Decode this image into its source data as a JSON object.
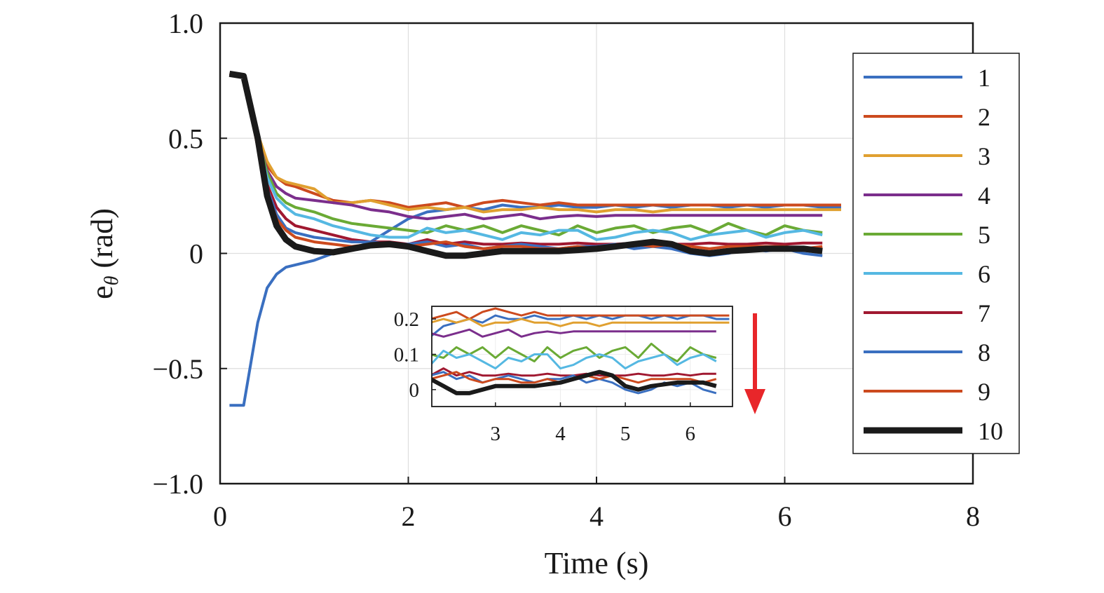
{
  "chart_data": {
    "type": "line",
    "title": "",
    "xlabel": "Time (s)",
    "ylabel": {
      "base": "e",
      "sub": "θ",
      "unit": "(rad)"
    },
    "xlim": [
      0,
      8
    ],
    "ylim": [
      -1.0,
      1.0
    ],
    "xticks": [
      0,
      2,
      4,
      6,
      8
    ],
    "xtick_labels": [
      "0",
      "2",
      "4",
      "6",
      "8"
    ],
    "yticks": [
      1.0,
      0.5,
      0,
      -0.5,
      -1.0
    ],
    "ytick_labels": [
      "1.0",
      "0.5",
      "0",
      "−0.5",
      "−1.0"
    ],
    "grid": true,
    "legend_placement": "right",
    "x": [
      0.1,
      0.25,
      0.4,
      0.5,
      0.6,
      0.7,
      0.8,
      1.0,
      1.2,
      1.4,
      1.6,
      1.8,
      2.0,
      2.2,
      2.4,
      2.6,
      2.8,
      3.0,
      3.2,
      3.4,
      3.6,
      3.8,
      4.0,
      4.2,
      4.4,
      4.6,
      4.8,
      5.0,
      5.2,
      5.4,
      5.6,
      5.8,
      6.0,
      6.2,
      6.4,
      6.6
    ],
    "series": [
      {
        "name": "1",
        "color": "#3a6fc0",
        "values": [
          -0.66,
          -0.66,
          -0.3,
          -0.15,
          -0.09,
          -0.06,
          -0.05,
          -0.03,
          0.0,
          0.02,
          0.05,
          0.1,
          0.15,
          0.18,
          0.19,
          0.2,
          0.19,
          0.21,
          0.2,
          0.2,
          0.21,
          0.2,
          0.2,
          0.21,
          0.2,
          0.21,
          0.2,
          0.21,
          0.21,
          0.2,
          0.21,
          0.2,
          0.21,
          0.21,
          0.2,
          0.2
        ]
      },
      {
        "name": "2",
        "color": "#cc4a1e",
        "values": [
          0.78,
          0.77,
          0.52,
          0.38,
          0.33,
          0.3,
          0.29,
          0.26,
          0.23,
          0.22,
          0.23,
          0.22,
          0.2,
          0.21,
          0.22,
          0.2,
          0.22,
          0.23,
          0.22,
          0.21,
          0.22,
          0.21,
          0.21,
          0.21,
          0.21,
          0.21,
          0.21,
          0.21,
          0.21,
          0.21,
          0.21,
          0.21,
          0.21,
          0.21,
          0.21,
          0.21
        ]
      },
      {
        "name": "3",
        "color": "#e0a030",
        "values": [
          0.78,
          0.77,
          0.52,
          0.4,
          0.33,
          0.31,
          0.3,
          0.28,
          0.22,
          0.22,
          0.23,
          0.21,
          0.19,
          0.2,
          0.19,
          0.2,
          0.18,
          0.19,
          0.19,
          0.2,
          0.19,
          0.19,
          0.18,
          0.19,
          0.19,
          0.18,
          0.19,
          0.19,
          0.19,
          0.19,
          0.19,
          0.19,
          0.19,
          0.19,
          0.19,
          0.19
        ]
      },
      {
        "name": "4",
        "color": "#7b2e8c",
        "values": [
          0.78,
          0.77,
          0.5,
          0.36,
          0.29,
          0.26,
          0.24,
          0.23,
          0.22,
          0.21,
          0.19,
          0.18,
          0.16,
          0.15,
          0.16,
          0.17,
          0.15,
          0.16,
          0.17,
          0.15,
          0.16,
          0.165,
          0.16,
          0.165,
          0.165,
          0.165,
          0.165,
          0.165,
          0.165,
          0.165,
          0.165,
          0.165,
          0.165,
          0.165,
          0.165,
          null
        ]
      },
      {
        "name": "5",
        "color": "#6aaa35",
        "values": [
          0.78,
          0.77,
          0.5,
          0.35,
          0.26,
          0.22,
          0.2,
          0.18,
          0.15,
          0.13,
          0.12,
          0.11,
          0.1,
          0.09,
          0.12,
          0.1,
          0.12,
          0.09,
          0.12,
          0.1,
          0.08,
          0.12,
          0.09,
          0.11,
          0.12,
          0.09,
          0.11,
          0.12,
          0.09,
          0.13,
          0.1,
          0.08,
          0.12,
          0.1,
          0.09,
          null
        ]
      },
      {
        "name": "6",
        "color": "#55b8e2",
        "values": [
          0.78,
          0.77,
          0.49,
          0.33,
          0.24,
          0.2,
          0.17,
          0.15,
          0.12,
          0.1,
          0.08,
          0.07,
          0.07,
          0.11,
          0.09,
          0.1,
          0.08,
          0.06,
          0.09,
          0.08,
          0.1,
          0.1,
          0.06,
          0.07,
          0.09,
          0.1,
          0.09,
          0.06,
          0.08,
          0.09,
          0.1,
          0.07,
          0.09,
          0.1,
          0.08,
          null
        ]
      },
      {
        "name": "7",
        "color": "#a01830",
        "values": [
          0.78,
          0.77,
          0.48,
          0.3,
          0.2,
          0.15,
          0.12,
          0.1,
          0.08,
          0.06,
          0.05,
          0.05,
          0.04,
          0.06,
          0.04,
          0.05,
          0.04,
          0.04,
          0.045,
          0.04,
          0.04,
          0.045,
          0.04,
          0.04,
          0.045,
          0.04,
          0.04,
          0.04,
          0.045,
          0.04,
          0.04,
          0.045,
          0.04,
          0.045,
          0.045,
          null
        ]
      },
      {
        "name": "8",
        "color": "#3a6fc0",
        "values": [
          0.78,
          0.77,
          0.47,
          0.28,
          0.17,
          0.11,
          0.09,
          0.07,
          0.06,
          0.05,
          0.05,
          0.04,
          0.04,
          0.05,
          0.03,
          0.04,
          0.02,
          0.03,
          0.04,
          0.03,
          0.02,
          0.03,
          0.03,
          0.04,
          0.02,
          0.03,
          0.02,
          0.0,
          -0.01,
          0.0,
          0.02,
          0.01,
          0.02,
          0.0,
          -0.01,
          null
        ]
      },
      {
        "name": "9",
        "color": "#cc4a1e",
        "values": [
          0.78,
          0.77,
          0.46,
          0.27,
          0.15,
          0.1,
          0.07,
          0.05,
          0.04,
          0.03,
          0.04,
          0.04,
          0.03,
          0.04,
          0.05,
          0.03,
          0.02,
          0.03,
          0.03,
          0.02,
          0.02,
          0.03,
          0.02,
          0.03,
          0.04,
          0.03,
          0.04,
          0.03,
          0.02,
          0.03,
          0.03,
          0.03,
          0.03,
          0.02,
          0.03,
          null
        ]
      },
      {
        "name": "10",
        "color": "#1a1a1a",
        "values": [
          0.78,
          0.77,
          0.5,
          0.25,
          0.12,
          0.06,
          0.03,
          0.01,
          0.005,
          0.02,
          0.035,
          0.04,
          0.03,
          0.01,
          -0.01,
          -0.01,
          0.0,
          0.01,
          0.01,
          0.01,
          0.01,
          0.015,
          0.02,
          0.03,
          0.04,
          0.05,
          0.04,
          0.01,
          0.0,
          0.01,
          0.015,
          0.02,
          0.02,
          0.02,
          0.01,
          null
        ]
      }
    ],
    "inset": {
      "xlim": [
        2.02,
        6.65
      ],
      "ylim": [
        -0.048,
        0.236
      ],
      "xticks": [
        3,
        4,
        5,
        6
      ],
      "xtick_labels": [
        "3",
        "4",
        "5",
        "6"
      ],
      "yticks": [
        0.2,
        0.1,
        0
      ],
      "ytick_labels": [
        "0.2",
        "0.1",
        "0"
      ]
    },
    "annotations": [
      {
        "type": "arrow",
        "direction": "down",
        "color": "#e8262a"
      }
    ]
  }
}
